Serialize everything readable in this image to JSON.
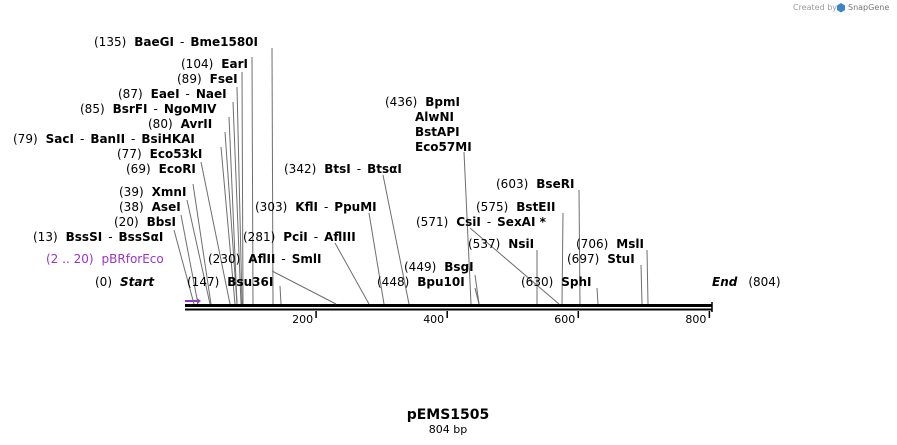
{
  "credit": {
    "prefix": "Created by",
    "brand": "SnapGene"
  },
  "plasmid": {
    "name": "pEMS1505",
    "size_label": "804 bp",
    "length": 804
  },
  "ticks": [
    "200",
    "400",
    "600",
    "800"
  ],
  "feature": {
    "range": "(2 .. 20)",
    "name": "pBRforEco"
  },
  "ends": {
    "start": {
      "num": "(0)",
      "label": "Start"
    },
    "end": {
      "num": "(804)",
      "label": "End"
    }
  },
  "labels": [
    {
      "id": "baegi",
      "num": "(135)",
      "names": [
        "BaeGI",
        "Bme1580I"
      ]
    },
    {
      "id": "eari",
      "num": "(104)",
      "names": [
        "EarI"
      ]
    },
    {
      "id": "fsei",
      "num": "(89)",
      "names": [
        "FseI"
      ]
    },
    {
      "id": "eaei",
      "num": "(87)",
      "names": [
        "EaeI",
        "NaeI"
      ]
    },
    {
      "id": "bsrfi",
      "num": "(85)",
      "names": [
        "BsrFI",
        "NgoMIV"
      ]
    },
    {
      "id": "avrii",
      "num": "(80)",
      "names": [
        "AvrII"
      ]
    },
    {
      "id": "saci",
      "num": "(79)",
      "names": [
        "SacI",
        "BanII",
        "BsiHKAI"
      ]
    },
    {
      "id": "eco53ki",
      "num": "(77)",
      "names": [
        "Eco53kI"
      ]
    },
    {
      "id": "ecori",
      "num": "(69)",
      "names": [
        "EcoRI"
      ]
    },
    {
      "id": "xmni",
      "num": "(39)",
      "names": [
        "XmnI"
      ]
    },
    {
      "id": "asei",
      "num": "(38)",
      "names": [
        "AseI"
      ]
    },
    {
      "id": "bbsi",
      "num": "(20)",
      "names": [
        "BbsI"
      ]
    },
    {
      "id": "bsssi",
      "num": "(13)",
      "names": [
        "BssSI",
        "BssSαI"
      ]
    },
    {
      "id": "bsu36i",
      "num": "(147)",
      "names": [
        "Bsu36I"
      ]
    },
    {
      "id": "aflii",
      "num": "(230)",
      "names": [
        "AflII",
        "SmlI"
      ]
    },
    {
      "id": "pcii",
      "num": "(281)",
      "names": [
        "PciI",
        "AflIII"
      ]
    },
    {
      "id": "kfli",
      "num": "(303)",
      "names": [
        "KflI",
        "PpuMI"
      ]
    },
    {
      "id": "btsi",
      "num": "(342)",
      "names": [
        "BtsI",
        "BtsαI"
      ]
    },
    {
      "id": "bpmi",
      "num": "(436)",
      "names": [
        "BpmI",
        "AlwNI",
        "BstAPI",
        "Eco57MI"
      ]
    },
    {
      "id": "bsgi",
      "num": "(449)",
      "names": [
        "BsgI"
      ]
    },
    {
      "id": "bpu10i",
      "num": "(448)",
      "names": [
        "Bpu10I"
      ]
    },
    {
      "id": "csii",
      "num": "(571)",
      "names": [
        "CsiI",
        "SexAI *"
      ]
    },
    {
      "id": "bseri",
      "num": "(603)",
      "names": [
        "BseRI"
      ]
    },
    {
      "id": "bsteii",
      "num": "(575)",
      "names": [
        "BstEII"
      ]
    },
    {
      "id": "nsii",
      "num": "(537)",
      "names": [
        "NsiI"
      ]
    },
    {
      "id": "msli",
      "num": "(706)",
      "names": [
        "MslI"
      ]
    },
    {
      "id": "stui",
      "num": "(697)",
      "names": [
        "StuI"
      ]
    },
    {
      "id": "sphi",
      "num": "(630)",
      "names": [
        "SphI"
      ]
    }
  ]
}
